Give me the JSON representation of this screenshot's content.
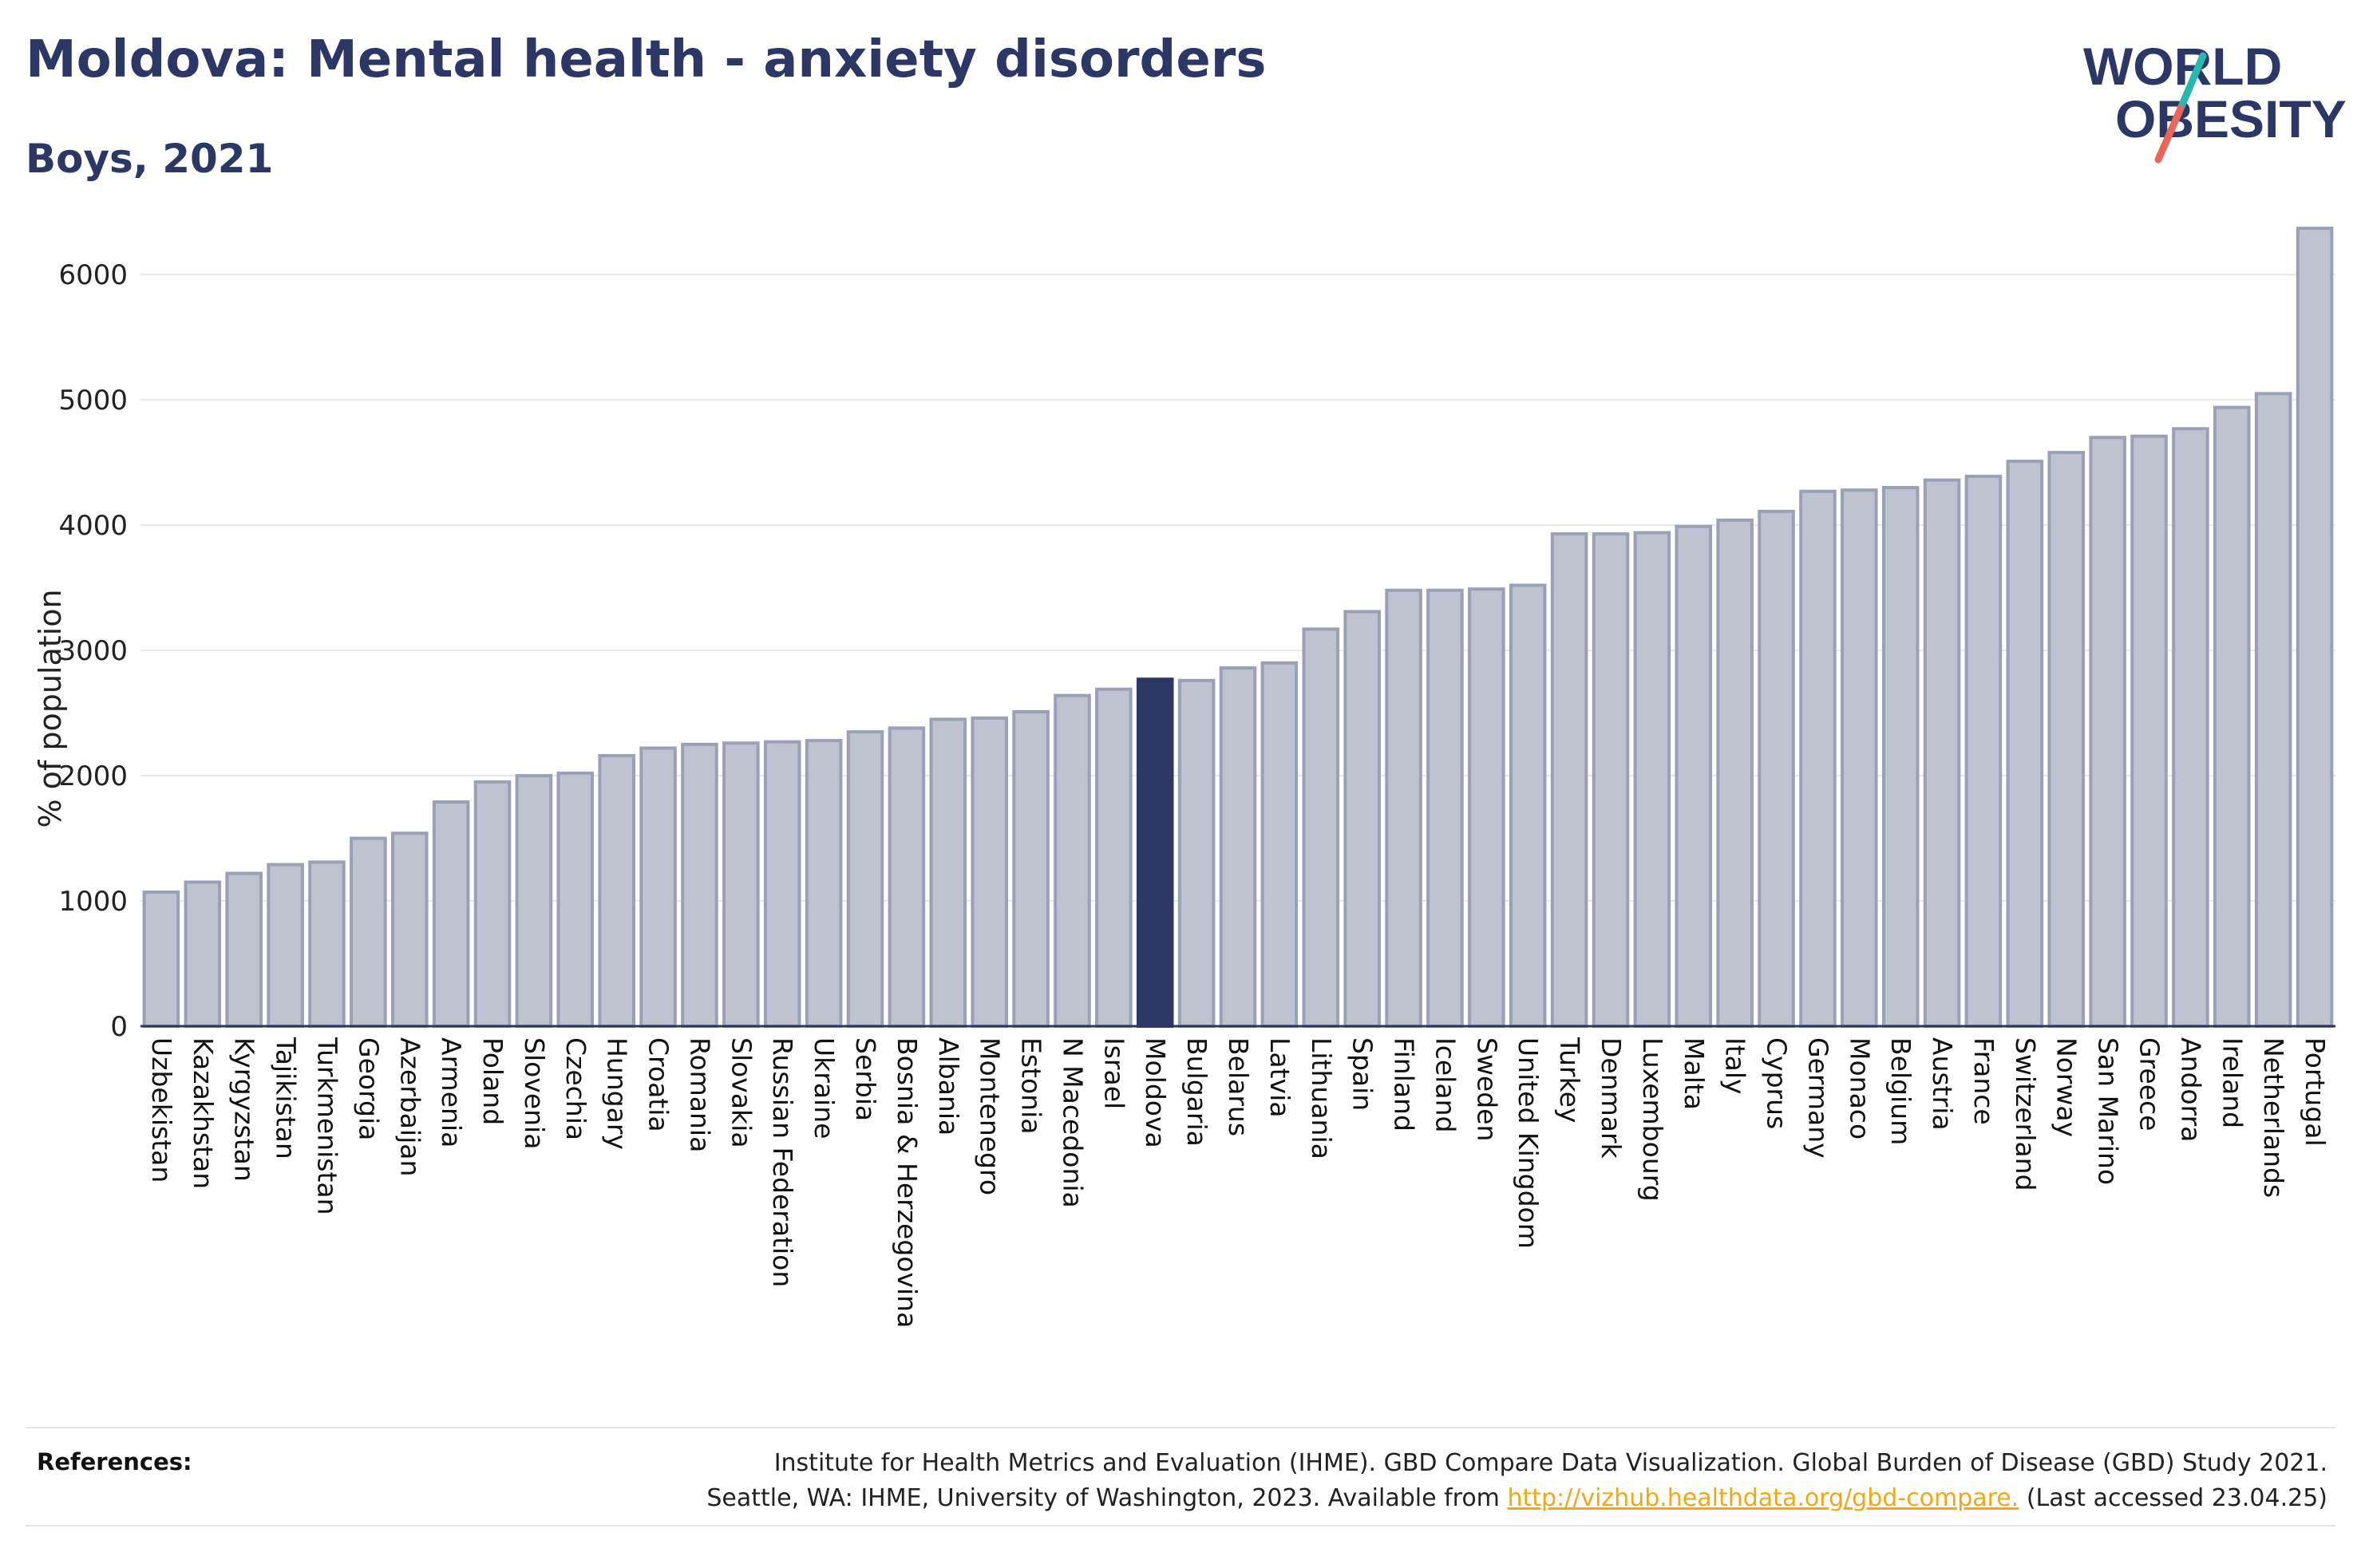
{
  "header": {
    "title": "Moldova: Mental health - anxiety disorders",
    "subtitle": "Boys, 2021"
  },
  "logo": {
    "line1": "WORLD",
    "line2": "OBESITY",
    "colors": {
      "text": "#2d3765",
      "slash_top": "#2ab7b0",
      "slash_bottom": "#e8675a"
    }
  },
  "references": {
    "label": "References:",
    "line1": "Institute for Health Metrics and Evaluation (IHME). GBD Compare Data Visualization. Global Burden of Disease (GBD) Study 2021.",
    "line2_prefix": "Seattle, WA: IHME, University of Washington, 2023. Available from ",
    "link": "http://vizhub.healthdata.org/gbd-compare.",
    "line2_suffix": " (Last accessed 23.04.25)"
  },
  "colors": {
    "bar": "#bfc3d0",
    "bar_stroke": "#9aa0b5",
    "highlight": "#2d3765",
    "grid": "#e8e8e8",
    "axis": "#2d3765"
  },
  "chart_data": {
    "type": "bar",
    "title": "Moldova: Mental health - anxiety disorders",
    "subtitle": "Boys, 2021",
    "xlabel": "",
    "ylabel": "% of population",
    "ylim": [
      0,
      6600
    ],
    "yticks": [
      0,
      1000,
      2000,
      3000,
      4000,
      5000,
      6000
    ],
    "grid": true,
    "highlight": "Moldova",
    "categories": [
      "Uzbekistan",
      "Kazakhstan",
      "Kyrgyzstan",
      "Tajikistan",
      "Turkmenistan",
      "Georgia",
      "Azerbaijan",
      "Armenia",
      "Poland",
      "Slovenia",
      "Czechia",
      "Hungary",
      "Croatia",
      "Romania",
      "Slovakia",
      "Russian Federation",
      "Ukraine",
      "Serbia",
      "Bosnia & Herzegovina",
      "Albania",
      "Montenegro",
      "Estonia",
      "N Macedonia",
      "Israel",
      "Moldova",
      "Bulgaria",
      "Belarus",
      "Latvia",
      "Lithuania",
      "Spain",
      "Finland",
      "Iceland",
      "Sweden",
      "United Kingdom",
      "Turkey",
      "Denmark",
      "Luxembourg",
      "Malta",
      "Italy",
      "Cyprus",
      "Germany",
      "Monaco",
      "Belgium",
      "Austria",
      "France",
      "Switzerland",
      "Norway",
      "San Marino",
      "Greece",
      "Andorra",
      "Ireland",
      "Netherlands",
      "Portugal"
    ],
    "values": [
      1070,
      1150,
      1220,
      1290,
      1310,
      1500,
      1540,
      1790,
      1950,
      2000,
      2020,
      2160,
      2220,
      2250,
      2260,
      2270,
      2280,
      2350,
      2380,
      2450,
      2460,
      2510,
      2640,
      2690,
      2770,
      2760,
      2860,
      2900,
      3170,
      3310,
      3480,
      3480,
      3490,
      3520,
      3930,
      3930,
      3940,
      3990,
      4040,
      4110,
      4270,
      4280,
      4300,
      4360,
      4390,
      4510,
      4580,
      4700,
      4710,
      4770,
      4940,
      5050,
      6370
    ]
  }
}
